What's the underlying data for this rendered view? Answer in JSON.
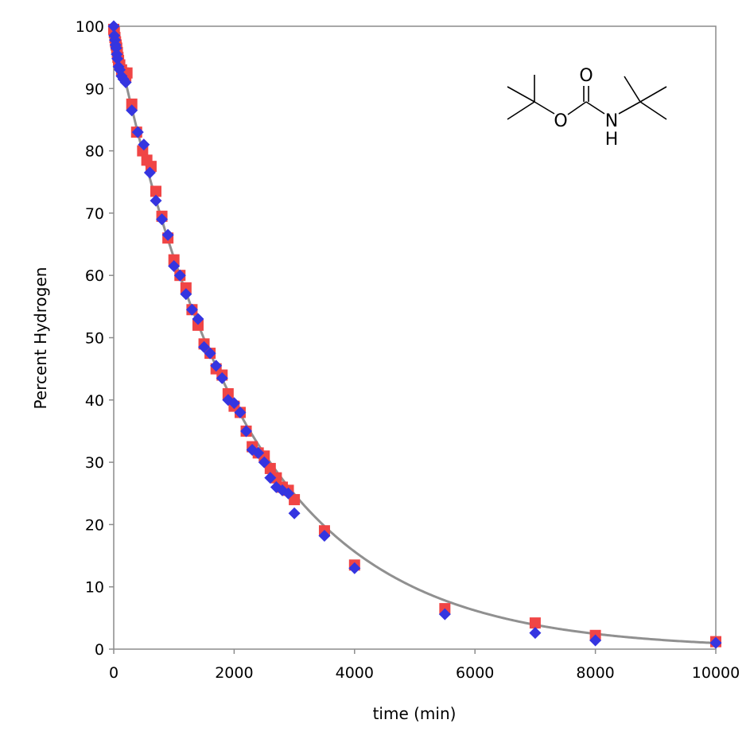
{
  "chart_data": {
    "type": "scatter",
    "xlabel": "time (min)",
    "ylabel": "Percent Hydrogen",
    "xlim": [
      0,
      10000
    ],
    "ylim": [
      0,
      100
    ],
    "xticks": [
      "0",
      "2000",
      "4000",
      "6000",
      "8000",
      "10000"
    ],
    "yticks": [
      "0",
      "10",
      "20",
      "30",
      "40",
      "50",
      "60",
      "70",
      "80",
      "90",
      "100"
    ],
    "grid": false,
    "legend": "none",
    "structure_atoms": [
      "O",
      "O",
      "N",
      "H"
    ],
    "colors": {
      "series_a": "#f04545",
      "series_b": "#3535e0",
      "fit": "#909090"
    },
    "series": [
      {
        "marker": "square",
        "color": "#f04545",
        "x": [
          0,
          10,
          20,
          30,
          40,
          50,
          60,
          70,
          80,
          100,
          130,
          160,
          200,
          220,
          300,
          380,
          480,
          550,
          620,
          700,
          800,
          900,
          1000,
          1100,
          1200,
          1300,
          1400,
          1500,
          1600,
          1700,
          1800,
          1900,
          2000,
          2100,
          2200,
          2300,
          2400,
          2500,
          2600,
          2700,
          2800,
          2900,
          3000,
          3500,
          4000,
          5500,
          7000,
          8000,
          10000
        ],
        "y": [
          99.5,
          99.0,
          98.2,
          97.5,
          97.0,
          96.5,
          95.8,
          95.0,
          94.5,
          93.8,
          93.0,
          92.5,
          92.0,
          92.5,
          87.5,
          83.0,
          80.0,
          78.5,
          77.5,
          73.5,
          69.5,
          66.0,
          62.5,
          60.0,
          58.0,
          54.5,
          52.0,
          49.0,
          47.5,
          45.0,
          44.0,
          41.0,
          39.0,
          38.0,
          35.0,
          32.5,
          31.5,
          31.0,
          29.0,
          27.5,
          26.0,
          25.5,
          24.0,
          19.0,
          13.5,
          6.5,
          4.2,
          2.2,
          1.2
        ]
      },
      {
        "marker": "diamond",
        "color": "#3535e0",
        "x": [
          0,
          10,
          20,
          30,
          40,
          50,
          60,
          80,
          100,
          130,
          160,
          200,
          300,
          400,
          500,
          600,
          700,
          800,
          900,
          1000,
          1100,
          1200,
          1300,
          1400,
          1500,
          1600,
          1700,
          1800,
          1900,
          2000,
          2100,
          2200,
          2300,
          2400,
          2500,
          2600,
          2700,
          2800,
          2900,
          3000,
          3500,
          4000,
          5500,
          7000,
          8000,
          10000
        ],
        "y": [
          100,
          98.5,
          97.8,
          97.0,
          96.5,
          95.5,
          94.8,
          93.5,
          93.0,
          92.0,
          91.5,
          91.0,
          86.5,
          83.0,
          81.0,
          76.5,
          72.0,
          69.0,
          66.5,
          61.5,
          60.0,
          57.0,
          54.5,
          53.0,
          48.5,
          47.5,
          45.5,
          43.5,
          40.0,
          39.5,
          38.0,
          35.0,
          32.0,
          31.5,
          30.0,
          27.5,
          26.0,
          25.5,
          25.0,
          21.8,
          18.2,
          13.0,
          5.6,
          2.6,
          1.4,
          1.0
        ]
      }
    ],
    "fit_curve": {
      "type": "exponential_decay",
      "a": 99.8,
      "k": 0.000463
    }
  }
}
